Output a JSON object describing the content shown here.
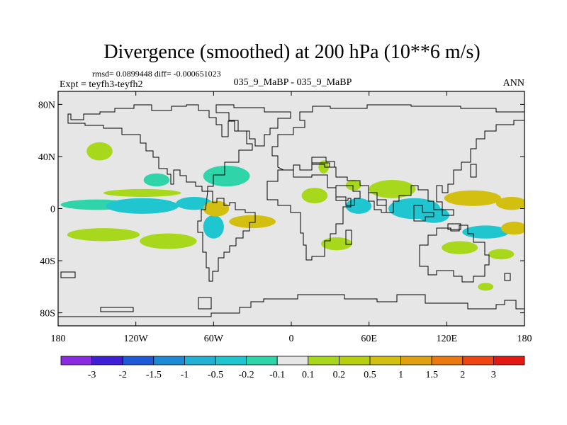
{
  "title": "Divergence (smoothed) at 200 hPa (10**6 m/s)",
  "stats": "rmsd= 0.0899448 diff= -0.000651023",
  "expt": "Expt = teyfh3-teyfh2",
  "case_label": "035_9_MaBP - 035_9_MaBP",
  "season": "ANN",
  "colors": {
    "land_background": "#e6e6e6",
    "coastline": "#000000",
    "neg_weak": "#2fd4a8",
    "neg_moderate": "#20c6cf",
    "pos_weak": "#a8d81c",
    "pos_moderate": "#d2bf10"
  },
  "map": {
    "projection": "cylindrical-equidistant",
    "lon_range": [
      -180,
      180
    ],
    "lat_range": [
      -90,
      90
    ],
    "lat_ticks": [
      {
        "value": 80,
        "label": "80N"
      },
      {
        "value": 40,
        "label": "40N"
      },
      {
        "value": 0,
        "label": "0"
      },
      {
        "value": -40,
        "label": "40S"
      },
      {
        "value": -80,
        "label": "80S"
      }
    ],
    "lon_ticks": [
      {
        "value": -180,
        "label": "180"
      },
      {
        "value": -120,
        "label": "120W"
      },
      {
        "value": -60,
        "label": "60W"
      },
      {
        "value": 0,
        "label": "0"
      },
      {
        "value": 60,
        "label": "60E"
      },
      {
        "value": 120,
        "label": "120E"
      },
      {
        "value": 180,
        "label": "180"
      }
    ]
  },
  "chart_data": {
    "type": "heatmap",
    "title": "Divergence (smoothed) at 200 hPa (10**6 m/s)",
    "units": "10**6 m/s",
    "level": "200 hPa",
    "field_note": "filled contour map of divergence difference; features listed as lon/lat centers and half-extents in degrees",
    "features": [
      {
        "name": "pacific-equatorial-band-west",
        "lon": -150,
        "lat": 3,
        "dlon": 28,
        "dlat": 4,
        "band": "neg_weak"
      },
      {
        "name": "pacific-equatorial-core",
        "lon": -115,
        "lat": 2,
        "dlon": 28,
        "dlat": 6,
        "band": "neg_moderate"
      },
      {
        "name": "east-pacific-core",
        "lon": -75,
        "lat": 4,
        "dlon": 14,
        "dlat": 5,
        "band": "neg_moderate"
      },
      {
        "name": "north-pacific-patch",
        "lon": -148,
        "lat": 44,
        "dlon": 10,
        "dlat": 7,
        "band": "pos_weak"
      },
      {
        "name": "central-pacific-north",
        "lon": -104,
        "lat": 22,
        "dlon": 10,
        "dlat": 5,
        "band": "neg_weak"
      },
      {
        "name": "mexico-patch",
        "lon": -50,
        "lat": 25,
        "dlon": 18,
        "dlat": 8,
        "band": "neg_weak"
      },
      {
        "name": "subtropical-north-pacific",
        "lon": -115,
        "lat": 12,
        "dlon": 30,
        "dlat": 3,
        "band": "pos_weak"
      },
      {
        "name": "south-pacific-band",
        "lon": -145,
        "lat": -20,
        "dlon": 28,
        "dlat": 5,
        "band": "pos_weak"
      },
      {
        "name": "south-pacific-east",
        "lon": -95,
        "lat": -25,
        "dlon": 22,
        "dlat": 6,
        "band": "pos_weak"
      },
      {
        "name": "south-america-core",
        "lon": -60,
        "lat": -14,
        "dlon": 8,
        "dlat": 9,
        "band": "neg_moderate"
      },
      {
        "name": "brazil-dipole-positive",
        "lon": -58,
        "lat": 0,
        "dlon": 10,
        "dlat": 6,
        "band": "pos_moderate"
      },
      {
        "name": "south-atlantic-diagonal",
        "lon": -30,
        "lat": -10,
        "dlon": 18,
        "dlat": 5,
        "band": "pos_moderate"
      },
      {
        "name": "africa-patch",
        "lon": 18,
        "lat": 10,
        "dlon": 10,
        "dlat": 6,
        "band": "pos_weak"
      },
      {
        "name": "north-africa-patch",
        "lon": 25,
        "lat": 32,
        "dlon": 4,
        "dlat": 5,
        "band": "pos_weak"
      },
      {
        "name": "south-africa-patch",
        "lon": 35,
        "lat": -27,
        "dlon": 12,
        "dlat": 5,
        "band": "pos_weak"
      },
      {
        "name": "indian-ocean-west",
        "lon": 52,
        "lat": 2,
        "dlon": 10,
        "dlat": 6,
        "band": "neg_moderate"
      },
      {
        "name": "arabia-patch",
        "lon": 48,
        "lat": 18,
        "dlon": 6,
        "dlat": 4,
        "band": "pos_weak"
      },
      {
        "name": "india-patch",
        "lon": 78,
        "lat": 15,
        "dlon": 18,
        "dlat": 7,
        "band": "pos_weak"
      },
      {
        "name": "indonesia-core",
        "lon": 95,
        "lat": 0,
        "dlon": 20,
        "dlat": 8,
        "band": "neg_moderate"
      },
      {
        "name": "maritime-continent",
        "lon": 110,
        "lat": -5,
        "dlon": 12,
        "dlat": 6,
        "band": "neg_moderate"
      },
      {
        "name": "western-pacific-positive",
        "lon": 140,
        "lat": 8,
        "dlon": 22,
        "dlat": 6,
        "band": "pos_moderate"
      },
      {
        "name": "far-west-pacific-positive",
        "lon": 170,
        "lat": 4,
        "dlon": 12,
        "dlat": 5,
        "band": "pos_moderate"
      },
      {
        "name": "spcz-band",
        "lon": 150,
        "lat": -18,
        "dlon": 18,
        "dlat": 5,
        "band": "neg_moderate"
      },
      {
        "name": "spcz-east",
        "lon": 172,
        "lat": -15,
        "dlon": 10,
        "dlat": 5,
        "band": "pos_moderate"
      },
      {
        "name": "australia-south",
        "lon": 130,
        "lat": -30,
        "dlon": 14,
        "dlat": 5,
        "band": "pos_weak"
      },
      {
        "name": "tasman-patch",
        "lon": 162,
        "lat": -35,
        "dlon": 10,
        "dlat": 4,
        "band": "pos_weak"
      },
      {
        "name": "southern-ocean-patch",
        "lon": 150,
        "lat": -60,
        "dlon": 6,
        "dlat": 3,
        "band": "pos_weak"
      }
    ],
    "legend": {
      "labels": [
        "-3",
        "-2",
        "-1.5",
        "-1",
        "-0.5",
        "-0.2",
        "-0.1",
        "0.1",
        "0.2",
        "0.5",
        "1",
        "1.5",
        "2",
        "3"
      ],
      "colors": [
        "#8a2be2",
        "#3e1fd6",
        "#1e5ad8",
        "#1e8ad6",
        "#22b0d4",
        "#20c6cf",
        "#2fd4a8",
        "#e6e6e6",
        "#a8d81c",
        "#b6d010",
        "#d2bf10",
        "#e0a010",
        "#ea7a10",
        "#ee4512",
        "#e41a12"
      ]
    }
  }
}
